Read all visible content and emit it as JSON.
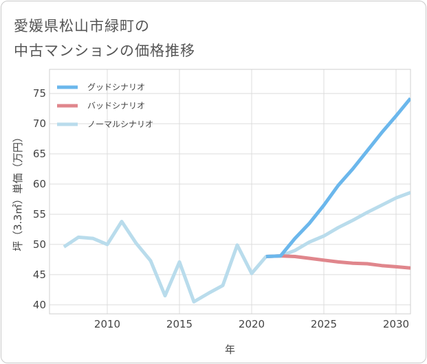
{
  "title_line1": "愛媛県松山市緑町の",
  "title_line2": "中古マンションの価格推移",
  "chart_data": {
    "type": "line",
    "xlabel": "年",
    "ylabel": "坪（3.3㎡）単価（万円）",
    "xlim": [
      2006,
      2031
    ],
    "ylim": [
      38.5,
      79
    ],
    "xticks": [
      2010,
      2015,
      2020,
      2025,
      2030
    ],
    "yticks": [
      40,
      45,
      50,
      55,
      60,
      65,
      70,
      75
    ],
    "grid": true,
    "legend_position": "top-left",
    "series": [
      {
        "name": "グッドシナリオ",
        "color": "#6bb7ec",
        "x": [
          2021,
          2022,
          2023,
          2024,
          2025,
          2026,
          2027,
          2028,
          2029,
          2030,
          2031
        ],
        "y": [
          48.0,
          48.1,
          51.0,
          53.5,
          56.5,
          59.8,
          62.5,
          65.5,
          68.5,
          71.3,
          74.2
        ]
      },
      {
        "name": "バッドシナリオ",
        "color": "#e0868c",
        "x": [
          2021,
          2022,
          2023,
          2024,
          2025,
          2026,
          2027,
          2028,
          2029,
          2030,
          2031
        ],
        "y": [
          48.0,
          48.1,
          48.0,
          47.7,
          47.4,
          47.1,
          46.9,
          46.8,
          46.5,
          46.3,
          46.1
        ]
      },
      {
        "name": "ノーマルシナリオ",
        "color": "#b9dcec",
        "x": [
          2007,
          2008,
          2009,
          2010,
          2011,
          2012,
          2013,
          2014,
          2015,
          2016,
          2017,
          2018,
          2019,
          2020,
          2021,
          2022,
          2023,
          2024,
          2025,
          2026,
          2027,
          2028,
          2029,
          2030,
          2031
        ],
        "y": [
          49.6,
          51.2,
          51.0,
          50.0,
          53.8,
          50.2,
          47.3,
          41.5,
          47.1,
          40.5,
          41.9,
          43.2,
          49.9,
          45.2,
          48.0,
          48.1,
          49.0,
          50.4,
          51.4,
          52.8,
          54.0,
          55.3,
          56.5,
          57.7,
          58.6
        ]
      }
    ]
  }
}
